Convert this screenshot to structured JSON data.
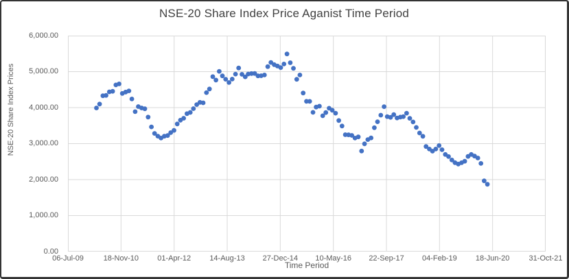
{
  "chart_data": {
    "type": "scatter",
    "title": "NSE-20 Share Index Price Aganist Time Period",
    "xlabel": "Time Period",
    "ylabel": "NSE-20 Share Index Prices",
    "legend_position": "none",
    "grid": true,
    "marker_color": "#4472C4",
    "grid_color": "#D9D9D9",
    "axis_text_color": "#595959",
    "title_color": "#404040",
    "ylim": [
      0,
      6000
    ],
    "y_tick_step": 1000,
    "y_tick_labels_top_to_bottom": [
      "6,000.00",
      "5,000.00",
      "4,000.00",
      "3,000.00",
      "2,000.00",
      "1,000.00",
      "0.00"
    ],
    "x_tick_labels": [
      "06-Jul-09",
      "18-Nov-10",
      "01-Apr-12",
      "14-Aug-13",
      "27-Dec-14",
      "10-May-16",
      "22-Sep-17",
      "04-Feb-19",
      "18-Jun-20",
      "31-Oct-21"
    ],
    "xlim_dates": [
      "2009-07-06",
      "2021-10-31"
    ],
    "series": [
      {
        "name": "NSE-20 Share Index Prices",
        "dates": [
          "2010-03-31",
          "2010-04-30",
          "2010-05-31",
          "2010-06-30",
          "2010-07-31",
          "2010-08-31",
          "2010-09-30",
          "2010-10-31",
          "2010-11-30",
          "2010-12-31",
          "2011-01-31",
          "2011-02-28",
          "2011-03-31",
          "2011-04-30",
          "2011-05-31",
          "2011-06-30",
          "2011-07-31",
          "2011-08-31",
          "2011-09-30",
          "2011-10-31",
          "2011-11-30",
          "2011-12-31",
          "2012-01-31",
          "2012-02-29",
          "2012-03-31",
          "2012-04-30",
          "2012-05-31",
          "2012-06-30",
          "2012-07-31",
          "2012-08-31",
          "2012-09-30",
          "2012-10-31",
          "2012-11-30",
          "2012-12-31",
          "2013-01-31",
          "2013-02-28",
          "2013-03-31",
          "2013-04-30",
          "2013-05-31",
          "2013-06-30",
          "2013-07-31",
          "2013-08-31",
          "2013-09-30",
          "2013-10-31",
          "2013-11-30",
          "2013-12-31",
          "2014-01-31",
          "2014-02-28",
          "2014-03-31",
          "2014-04-30",
          "2014-05-31",
          "2014-06-30",
          "2014-07-31",
          "2014-08-31",
          "2014-09-30",
          "2014-10-31",
          "2014-11-30",
          "2014-12-31",
          "2015-01-31",
          "2015-02-28",
          "2015-03-31",
          "2015-04-30",
          "2015-05-31",
          "2015-06-30",
          "2015-07-31",
          "2015-08-31",
          "2015-09-30",
          "2015-10-31",
          "2015-11-30",
          "2015-12-31",
          "2016-01-31",
          "2016-02-29",
          "2016-03-31",
          "2016-04-30",
          "2016-05-31",
          "2016-06-30",
          "2016-07-31",
          "2016-08-31",
          "2016-09-30",
          "2016-10-31",
          "2016-11-30",
          "2016-12-31",
          "2017-01-31",
          "2017-02-28",
          "2017-03-31",
          "2017-04-30",
          "2017-05-31",
          "2017-06-30",
          "2017-07-31",
          "2017-08-31",
          "2017-09-30",
          "2017-10-31",
          "2017-11-30",
          "2017-12-31",
          "2018-01-31",
          "2018-02-28",
          "2018-03-31",
          "2018-04-30",
          "2018-05-31",
          "2018-06-30",
          "2018-07-31",
          "2018-08-31",
          "2018-09-30",
          "2018-10-31",
          "2018-11-30",
          "2018-12-31",
          "2019-01-31",
          "2019-02-28",
          "2019-03-31",
          "2019-04-30",
          "2019-05-31",
          "2019-06-30",
          "2019-07-31",
          "2019-08-31",
          "2019-09-30",
          "2019-10-31",
          "2019-11-30",
          "2019-12-31",
          "2020-01-31",
          "2020-02-29",
          "2020-03-31",
          "2020-04-30"
        ],
        "values": [
          3990,
          4100,
          4330,
          4339,
          4438,
          4454,
          4630,
          4660,
          4395,
          4433,
          4465,
          4240,
          3887,
          4029,
          3990,
          3968,
          3738,
          3465,
          3284,
          3207,
          3155,
          3205,
          3224,
          3304,
          3367,
          3547,
          3651,
          3704,
          3832,
          3866,
          3972,
          4083,
          4147,
          4133,
          4417,
          4519,
          4861,
          4765,
          5007,
          4881,
          4788,
          4698,
          4793,
          4931,
          5101,
          4926,
          4856,
          4933,
          4946,
          4949,
          4882,
          4885,
          4906,
          5139,
          5255,
          5195,
          5156,
          5113,
          5212,
          5491,
          5248,
          5091,
          4787,
          4906,
          4405,
          4176,
          4174,
          3869,
          4016,
          4040,
          3773,
          3862,
          3982,
          3927,
          3845,
          3641,
          3489,
          3247,
          3243,
          3229,
          3155,
          3186,
          2794,
          2994,
          3112,
          3158,
          3441,
          3607,
          3790,
          4027,
          3751,
          3730,
          3805,
          3712,
          3737,
          3751,
          3845,
          3702,
          3601,
          3450,
          3296,
          3203,
          2920,
          2850,
          2790,
          2850,
          2945,
          2830,
          2700,
          2640,
          2545,
          2470,
          2432,
          2468,
          2510,
          2644,
          2700,
          2654,
          2600,
          2450,
          1966,
          1870
        ]
      }
    ]
  }
}
